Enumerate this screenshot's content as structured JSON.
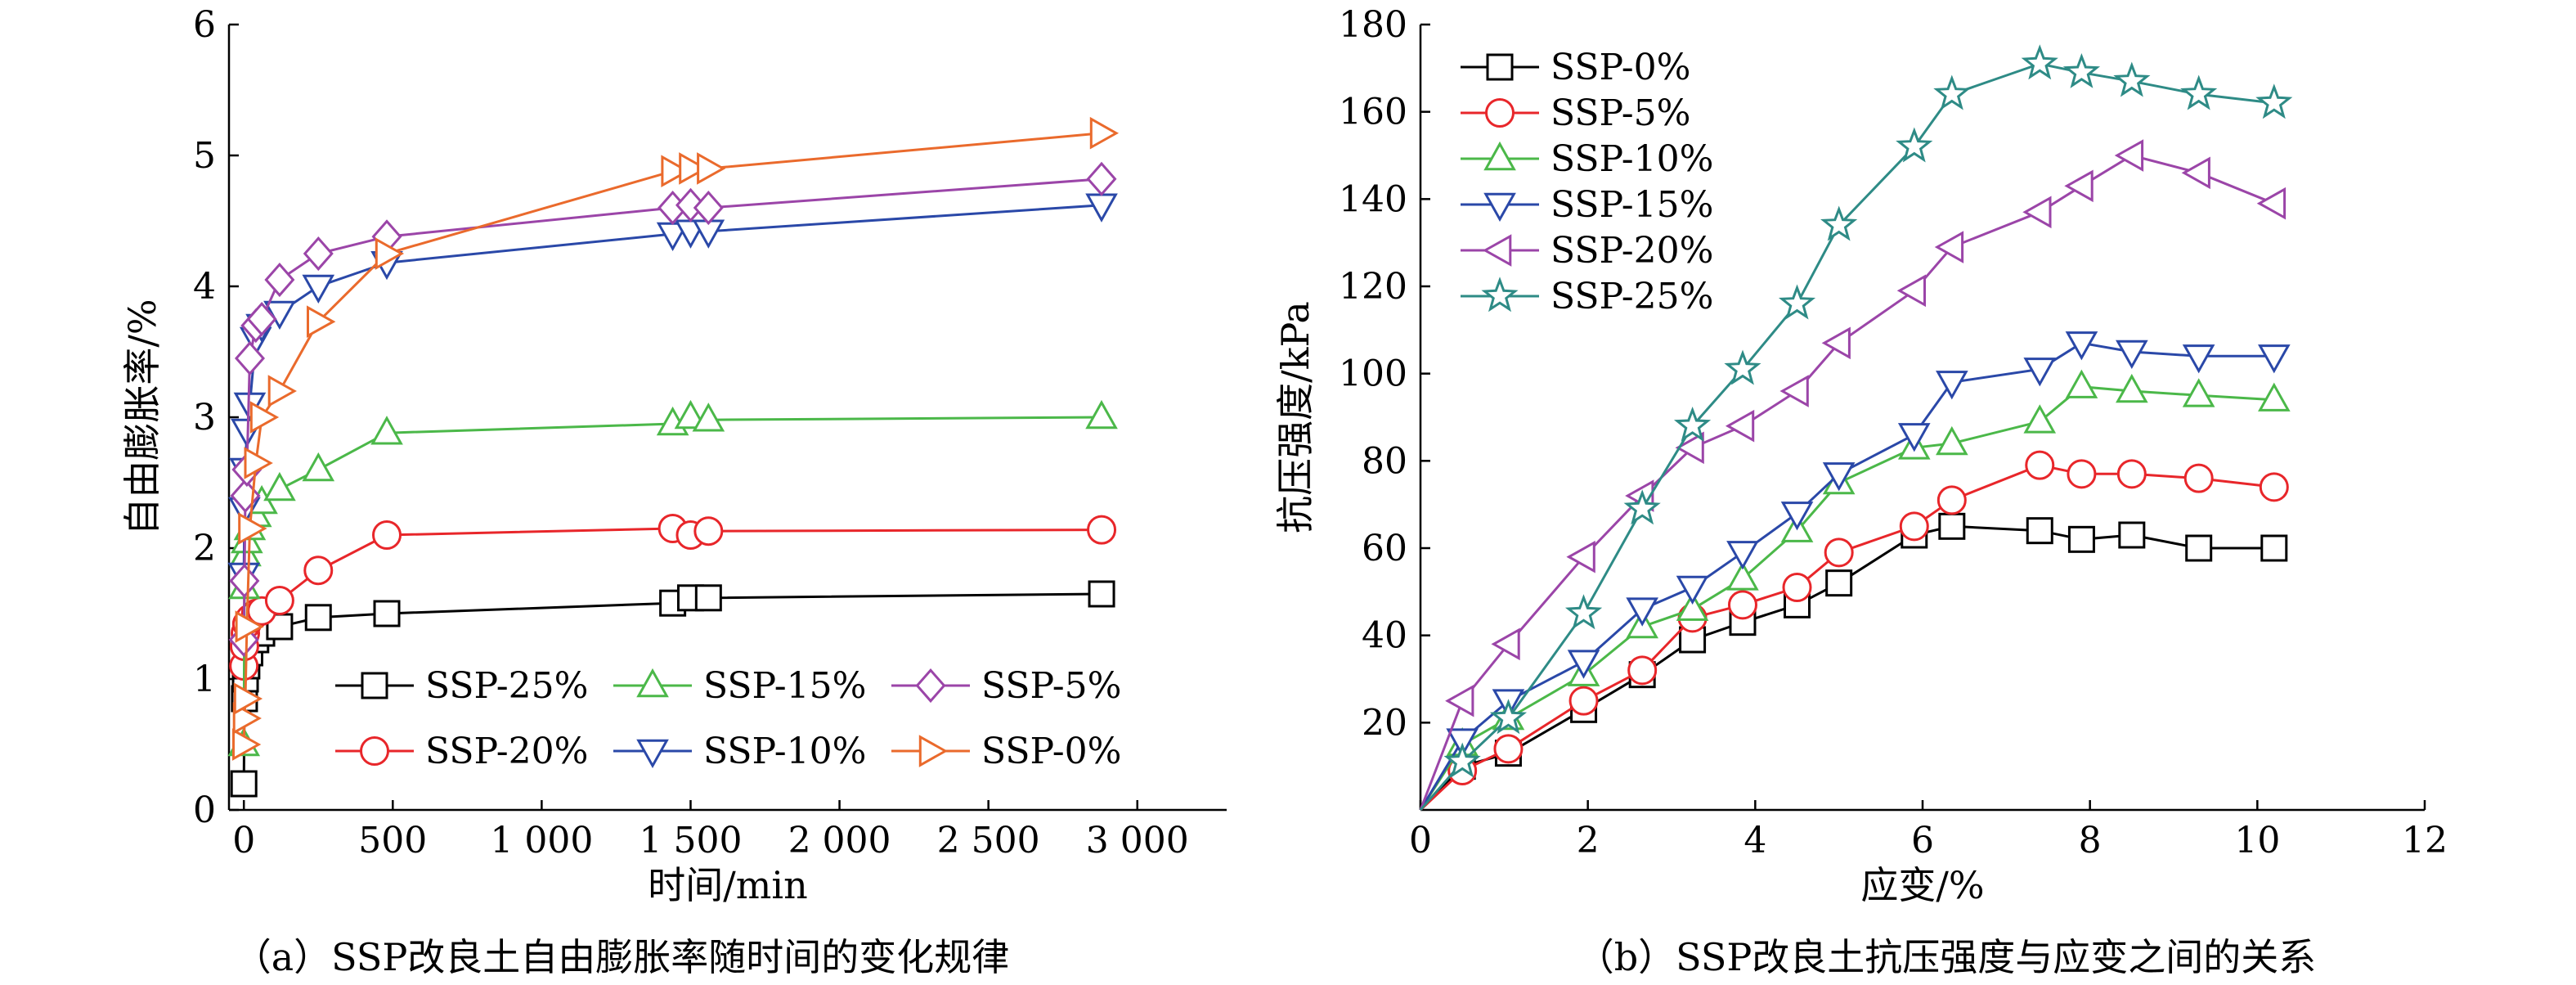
{
  "panels": [
    {
      "caption": "（a）SSP改良土自由膨胀率随时间的变化规律",
      "chart_data": {
        "type": "line",
        "title": "",
        "xlabel": "时间/min",
        "ylabel": "自由膨胀率/%",
        "xlim": [
          -50,
          3300
        ],
        "ylim": [
          0,
          6
        ],
        "xticks": [
          0,
          500,
          1000,
          1500,
          2000,
          2500,
          3000
        ],
        "xtick_labels": [
          "0",
          "500",
          "1 000",
          "1 500",
          "2 000",
          "2 500",
          "3 000"
        ],
        "yticks": [
          0,
          1,
          2,
          3,
          4,
          5,
          6
        ],
        "ytick_labels": [
          "0",
          "1",
          "2",
          "3",
          "4",
          "5",
          "6"
        ],
        "grid": false,
        "legend": {
          "position": "lower-right",
          "columns": 3
        },
        "series": [
          {
            "name": "SSP-25%",
            "marker": "square",
            "color": "#000000",
            "x": [
              0,
              2,
              5,
              10,
              20,
              40,
              60,
              120,
              250,
              480,
              1440,
              1500,
              1560,
              2880
            ],
            "y": [
              0.2,
              0.85,
              1.0,
              1.1,
              1.2,
              1.3,
              1.35,
              1.4,
              1.47,
              1.5,
              1.58,
              1.62,
              1.62,
              1.65
            ]
          },
          {
            "name": "SSP-20%",
            "marker": "circle",
            "color": "#e8262a",
            "x": [
              0,
              2,
              5,
              10,
              20,
              40,
              60,
              120,
              250,
              480,
              1440,
              1500,
              1560,
              2880
            ],
            "y": [
              1.1,
              1.25,
              1.35,
              1.42,
              1.46,
              1.5,
              1.52,
              1.6,
              1.83,
              2.1,
              2.15,
              2.1,
              2.13,
              2.14
            ]
          },
          {
            "name": "SSP-15%",
            "marker": "triangle-up",
            "color": "#4bb849",
            "x": [
              0,
              2,
              5,
              10,
              20,
              40,
              60,
              120,
              250,
              480,
              1440,
              1500,
              1560,
              2880
            ],
            "y": [
              0.5,
              1.7,
              1.95,
              2.05,
              2.15,
              2.25,
              2.35,
              2.45,
              2.6,
              2.88,
              2.95,
              3.0,
              2.98,
              3.0
            ]
          },
          {
            "name": "SSP-10%",
            "marker": "triangle-down",
            "color": "#2a48a8",
            "x": [
              0,
              2,
              5,
              10,
              20,
              40,
              60,
              120,
              250,
              480,
              1440,
              1500,
              1560,
              2880
            ],
            "y": [
              1.8,
              2.3,
              2.6,
              2.9,
              3.1,
              3.6,
              3.7,
              3.8,
              4.0,
              4.18,
              4.4,
              4.42,
              4.42,
              4.62
            ]
          },
          {
            "name": "SSP-5%",
            "marker": "diamond",
            "color": "#9b45a8",
            "x": [
              0,
              2,
              5,
              10,
              20,
              40,
              60,
              120,
              250,
              480,
              1440,
              1500,
              1560,
              2880
            ],
            "y": [
              1.3,
              1.75,
              2.4,
              2.6,
              3.45,
              3.7,
              3.75,
              4.05,
              4.25,
              4.38,
              4.6,
              4.62,
              4.6,
              4.82
            ]
          },
          {
            "name": "SSP-0%",
            "marker": "triangle-right",
            "color": "#ea6a2c",
            "x": [
              0,
              2,
              5,
              10,
              20,
              40,
              60,
              120,
              250,
              480,
              1440,
              1500,
              1560,
              2880
            ],
            "y": [
              0.5,
              0.7,
              0.85,
              1.4,
              2.15,
              2.65,
              3.0,
              3.2,
              3.73,
              4.25,
              4.88,
              4.9,
              4.9,
              5.17
            ]
          }
        ]
      }
    },
    {
      "caption": "（b）SSP改良土抗压强度与应变之间的关系",
      "chart_data": {
        "type": "line",
        "title": "",
        "xlabel": "应变/%",
        "ylabel": "抗压强度/kPa",
        "xlim": [
          0,
          12
        ],
        "ylim": [
          0,
          180
        ],
        "xticks": [
          0,
          2,
          4,
          6,
          8,
          10,
          12
        ],
        "xtick_labels": [
          "0",
          "2",
          "4",
          "6",
          "8",
          "10",
          "12"
        ],
        "yticks": [
          20,
          40,
          60,
          80,
          100,
          120,
          140,
          160,
          180
        ],
        "ytick_labels": [
          "20",
          "40",
          "60",
          "80",
          "100",
          "120",
          "140",
          "160",
          "180"
        ],
        "grid": false,
        "legend": {
          "position": "top-left",
          "columns": 1
        },
        "series": [
          {
            "name": "SSP-0%",
            "marker": "square",
            "color": "#000000",
            "x": [
              0,
              0.5,
              1.05,
              1.95,
              2.65,
              3.25,
              3.85,
              4.5,
              5.0,
              5.9,
              6.35,
              7.4,
              7.9,
              8.5,
              9.3,
              10.2
            ],
            "y": [
              0,
              10,
              13,
              23,
              31,
              39,
              43,
              47,
              52,
              63,
              65,
              64,
              62,
              63,
              60,
              60
            ]
          },
          {
            "name": "SSP-5%",
            "marker": "circle",
            "color": "#e8262a",
            "x": [
              0,
              0.5,
              1.05,
              1.95,
              2.65,
              3.25,
              3.85,
              4.5,
              5.0,
              5.9,
              6.35,
              7.4,
              7.9,
              8.5,
              9.3,
              10.2
            ],
            "y": [
              0,
              9,
              14,
              25,
              32,
              44,
              47,
              51,
              59,
              65,
              71,
              79,
              77,
              77,
              76,
              74
            ]
          },
          {
            "name": "SSP-10%",
            "marker": "triangle-up",
            "color": "#4bb849",
            "x": [
              0,
              0.5,
              1.05,
              1.95,
              2.65,
              3.25,
              3.85,
              4.5,
              5.0,
              5.9,
              6.35,
              7.4,
              7.9,
              8.5,
              9.3,
              10.2
            ],
            "y": [
              0,
              15,
              21,
              31,
              42,
              46,
              53,
              64,
              75,
              83,
              84,
              89,
              97,
              96,
              95,
              94
            ]
          },
          {
            "name": "SSP-15%",
            "marker": "triangle-down",
            "color": "#2a48a8",
            "x": [
              0,
              0.5,
              1.05,
              1.95,
              2.65,
              3.25,
              3.85,
              4.5,
              5.0,
              5.9,
              6.35,
              7.4,
              7.9,
              8.5,
              9.3,
              10.2
            ],
            "y": [
              0,
              16,
              25,
              34,
              46,
              51,
              59,
              68,
              77,
              86,
              98,
              101,
              107,
              105,
              104,
              104
            ]
          },
          {
            "name": "SSP-20%",
            "marker": "triangle-left",
            "color": "#9b45a8",
            "x": [
              0,
              0.5,
              1.05,
              1.95,
              2.65,
              3.25,
              3.85,
              4.5,
              5.0,
              5.9,
              6.35,
              7.4,
              7.9,
              8.5,
              9.3,
              10.2
            ],
            "y": [
              0,
              25,
              38,
              58,
              72,
              83,
              88,
              96,
              107,
              119,
              129,
              137,
              143,
              150,
              146,
              139
            ]
          },
          {
            "name": "SSP-25%",
            "marker": "star",
            "color": "#2e8b86",
            "x": [
              0,
              0.5,
              1.05,
              1.95,
              2.65,
              3.25,
              3.85,
              4.5,
              5.0,
              5.9,
              6.35,
              7.4,
              7.9,
              8.5,
              9.3,
              10.2
            ],
            "y": [
              0,
              11,
              21,
              45,
              69,
              88,
              101,
              116,
              134,
              152,
              164,
              171,
              169,
              167,
              164,
              162
            ]
          }
        ]
      }
    }
  ]
}
